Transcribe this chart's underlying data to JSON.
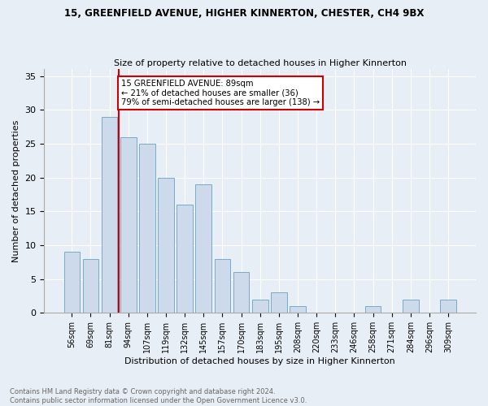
{
  "title1": "15, GREENFIELD AVENUE, HIGHER KINNERTON, CHESTER, CH4 9BX",
  "title2": "Size of property relative to detached houses in Higher Kinnerton",
  "xlabel": "Distribution of detached houses by size in Higher Kinnerton",
  "ylabel": "Number of detached properties",
  "categories": [
    "56sqm",
    "69sqm",
    "81sqm",
    "94sqm",
    "107sqm",
    "119sqm",
    "132sqm",
    "145sqm",
    "157sqm",
    "170sqm",
    "183sqm",
    "195sqm",
    "208sqm",
    "220sqm",
    "233sqm",
    "246sqm",
    "258sqm",
    "271sqm",
    "284sqm",
    "296sqm",
    "309sqm"
  ],
  "values": [
    9,
    8,
    29,
    26,
    25,
    20,
    16,
    19,
    8,
    6,
    2,
    3,
    1,
    0,
    0,
    0,
    1,
    0,
    2,
    0,
    2
  ],
  "bar_color": "#ccdaeb",
  "bar_edge_color": "#7aaac8",
  "vline_x": 2.5,
  "vline_color": "#cc0000",
  "annotation_text": "15 GREENFIELD AVENUE: 89sqm\n← 21% of detached houses are smaller (36)\n79% of semi-detached houses are larger (138) →",
  "annotation_box_color": "#ffffff",
  "annotation_box_edge": "#cc0000",
  "ylim": [
    0,
    36
  ],
  "yticks": [
    0,
    5,
    10,
    15,
    20,
    25,
    30,
    35
  ],
  "footer": "Contains HM Land Registry data © Crown copyright and database right 2024.\nContains public sector information licensed under the Open Government Licence v3.0.",
  "bg_color": "#e8eef5",
  "grid_color": "#ffffff"
}
